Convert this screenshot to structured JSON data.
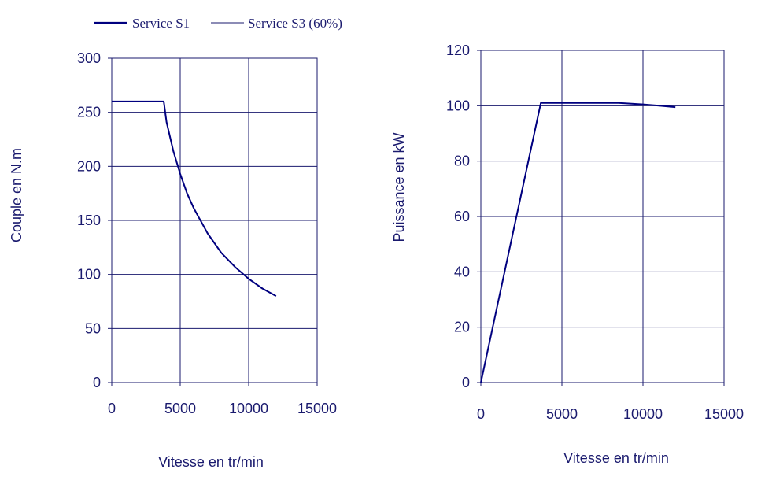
{
  "legend": {
    "items": [
      {
        "label": "Service S1",
        "color": "#00007f",
        "style": "thick"
      },
      {
        "label": "Service S3 (60%)",
        "color": "#1a1a6e",
        "style": "thin"
      }
    ]
  },
  "chart_data": [
    {
      "type": "line",
      "xlabel": "Vitesse en tr/min",
      "ylabel": "Couple en N.m",
      "xlim": [
        0,
        15000
      ],
      "ylim": [
        0,
        300
      ],
      "xticks": [
        0,
        5000,
        10000,
        15000
      ],
      "yticks": [
        0,
        50,
        100,
        150,
        200,
        250,
        300
      ],
      "grid": true,
      "series": [
        {
          "name": "Service S1",
          "x": [
            0,
            3800,
            4000,
            4500,
            5000,
            5500,
            6000,
            7000,
            8000,
            9000,
            10000,
            11000,
            12000
          ],
          "y": [
            260,
            260,
            241,
            214,
            193,
            175,
            161,
            138,
            120,
            107,
            96,
            87,
            80
          ]
        }
      ]
    },
    {
      "type": "line",
      "xlabel": "Vitesse en tr/min",
      "ylabel": "Puissance en kW",
      "xlim": [
        0,
        15000
      ],
      "ylim": [
        0,
        120
      ],
      "xticks": [
        0,
        5000,
        10000,
        15000
      ],
      "yticks": [
        0,
        20,
        40,
        60,
        80,
        100,
        120
      ],
      "grid": true,
      "series": [
        {
          "name": "Service S1",
          "x": [
            0,
            3700,
            8500,
            10000,
            11000,
            12000
          ],
          "y": [
            0,
            101,
            101,
            100.5,
            100,
            99.5
          ]
        }
      ]
    }
  ]
}
